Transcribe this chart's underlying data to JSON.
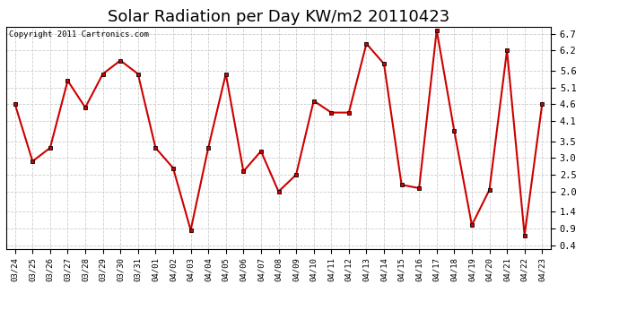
{
  "title": "Solar Radiation per Day KW/m2 20110423",
  "copyright": "Copyright 2011 Cartronics.com",
  "dates": [
    "03/24",
    "03/25",
    "03/26",
    "03/27",
    "03/28",
    "03/29",
    "03/30",
    "03/31",
    "04/01",
    "04/02",
    "04/03",
    "04/04",
    "04/05",
    "04/06",
    "04/07",
    "04/08",
    "04/09",
    "04/10",
    "04/11",
    "04/12",
    "04/13",
    "04/14",
    "04/15",
    "04/16",
    "04/17",
    "04/18",
    "04/19",
    "04/20",
    "04/21",
    "04/22",
    "04/23"
  ],
  "values": [
    4.6,
    2.9,
    3.3,
    5.3,
    4.5,
    5.5,
    5.9,
    5.5,
    3.3,
    2.7,
    0.85,
    3.3,
    5.5,
    2.6,
    3.2,
    2.0,
    2.5,
    4.7,
    4.35,
    4.35,
    6.4,
    5.8,
    2.2,
    2.1,
    6.8,
    3.8,
    1.0,
    2.05,
    6.2,
    0.7,
    4.6
  ],
  "line_color": "#cc0000",
  "marker": "s",
  "marker_size": 2.5,
  "background_color": "#ffffff",
  "grid_color": "#cccccc",
  "ytick_labels": [
    "0.4",
    "0.9",
    "1.4",
    "2.0",
    "2.5",
    "3.0",
    "3.5",
    "4.1",
    "4.6",
    "5.1",
    "5.6",
    "6.2",
    "6.7"
  ],
  "ytick_values": [
    0.4,
    0.9,
    1.4,
    2.0,
    2.5,
    3.0,
    3.5,
    4.1,
    4.6,
    5.1,
    5.6,
    6.2,
    6.7
  ],
  "ylim": [
    0.3,
    6.9
  ],
  "title_fontsize": 13,
  "copyright_fontsize": 6.5,
  "xtick_fontsize": 6.5,
  "ytick_fontsize": 7.5
}
